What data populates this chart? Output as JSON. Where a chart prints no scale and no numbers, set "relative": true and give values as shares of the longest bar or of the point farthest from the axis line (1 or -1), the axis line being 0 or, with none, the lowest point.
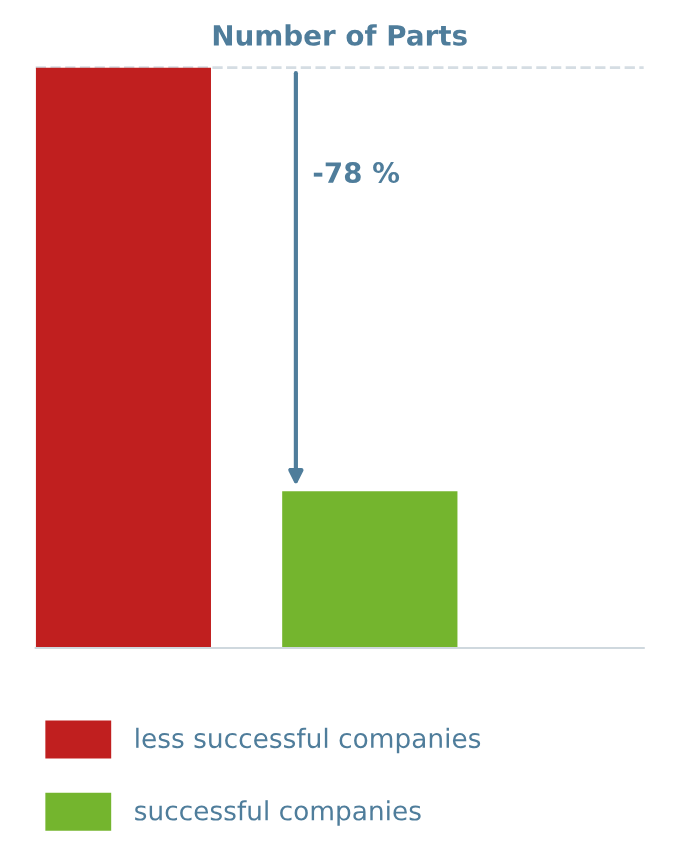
{
  "chart_data": {
    "type": "bar",
    "title": "Number of Parts",
    "relative": true,
    "categories": [
      null
    ],
    "series": [
      {
        "name": "less successful companies",
        "color": "#c01f1f",
        "values": [
          1
        ]
      },
      {
        "name": "successful companies",
        "color": "#74b52e",
        "values": [
          0.27
        ]
      }
    ],
    "ref_lines": [
      {
        "axis": "y",
        "value": 1,
        "color": "#d5dde3",
        "line_style": "dashed"
      }
    ],
    "annotations": [
      "-78 %"
    ],
    "legend": "bottom"
  }
}
